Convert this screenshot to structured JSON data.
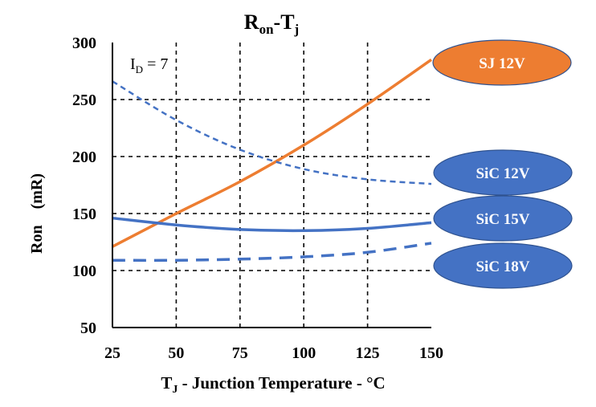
{
  "chart_data": {
    "type": "line",
    "title": {
      "main": "R",
      "sub1": "on",
      "dash": "-T",
      "sub2": "j"
    },
    "xlabel": {
      "pre": "T",
      "sub": "J",
      "rest": " - Junction Temperature - °C"
    },
    "ylabel": "Ron　(mR)",
    "annotation": {
      "pre": "I",
      "sub": "D",
      "rest": " = 7"
    },
    "xlim": [
      25,
      150
    ],
    "ylim": [
      50,
      300
    ],
    "x_ticks": [
      "25",
      "50",
      "75",
      "100",
      "125",
      "150"
    ],
    "y_ticks": [
      "50",
      "100",
      "150",
      "200",
      "250",
      "300"
    ],
    "grid": "dashed",
    "legend_position": "right",
    "series": [
      {
        "name": "SJ 12V",
        "color": "#ED7D31",
        "style": "solid",
        "x": [
          25,
          50,
          75,
          100,
          125,
          150
        ],
        "y": [
          121,
          150,
          178,
          210,
          246,
          285
        ]
      },
      {
        "name": "SiC 12V",
        "color": "#4472C4",
        "style": "dashed",
        "x": [
          25,
          50,
          75,
          100,
          125,
          150
        ],
        "y": [
          266,
          232,
          206,
          189,
          180,
          176
        ]
      },
      {
        "name": "SiC 15V",
        "color": "#4472C4",
        "style": "solid",
        "x": [
          25,
          50,
          75,
          100,
          125,
          150
        ],
        "y": [
          146,
          140,
          136,
          135,
          137,
          142
        ]
      },
      {
        "name": "SiC 18V",
        "color": "#4472C4",
        "style": "longdash",
        "x": [
          25,
          50,
          75,
          100,
          125,
          150
        ],
        "y": [
          109,
          109,
          110,
          112,
          116,
          124
        ]
      }
    ]
  }
}
